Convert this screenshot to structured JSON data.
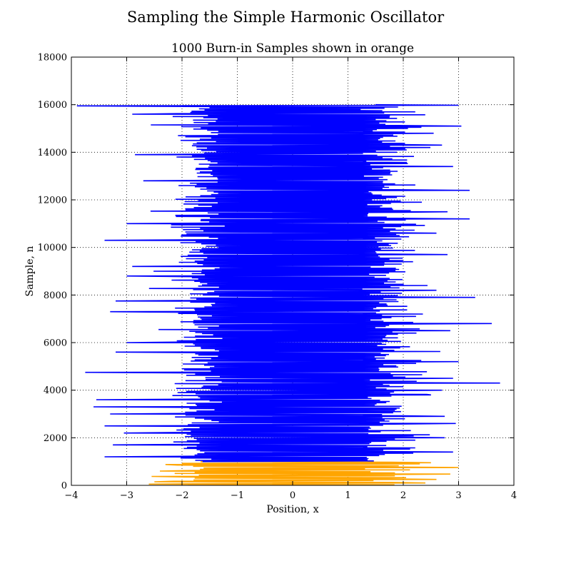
{
  "figure": {
    "suptitle": "Sampling the Simple Harmonic Oscillator"
  },
  "chart_data": {
    "type": "line",
    "title": "1000 Burn-in Samples shown in orange",
    "xlabel": "Position, x",
    "ylabel": "Sample, n",
    "xlim": [
      -4,
      4
    ],
    "ylim": [
      0,
      18000
    ],
    "xticks": [
      -4,
      -3,
      -2,
      -1,
      0,
      1,
      2,
      3,
      4
    ],
    "yticks": [
      0,
      2000,
      4000,
      6000,
      8000,
      10000,
      12000,
      14000,
      16000,
      18000
    ],
    "xtick_labels": [
      "−4",
      "−3",
      "−2",
      "−1",
      "0",
      "1",
      "2",
      "3",
      "4"
    ],
    "ytick_labels": [
      "0",
      "2000",
      "4000",
      "6000",
      "8000",
      "10000",
      "12000",
      "14000",
      "16000",
      "18000"
    ],
    "grid": true,
    "orientation": "horizontal trace (sample index on y, position on x)",
    "series": [
      {
        "color": "#ffa500",
        "sample_range": [
          0,
          1000
        ],
        "approx_x_range": [
          -2.6,
          3.0
        ],
        "peak_excursions": [
          {
            "n": 40,
            "x": -2.6
          },
          {
            "n": 90,
            "x": 2.4
          },
          {
            "n": 160,
            "x": -2.5
          },
          {
            "n": 250,
            "x": 2.6
          },
          {
            "n": 380,
            "x": -2.55
          },
          {
            "n": 470,
            "x": 2.85
          },
          {
            "n": 610,
            "x": -2.4
          },
          {
            "n": 740,
            "x": 3.0
          },
          {
            "n": 880,
            "x": -2.3
          },
          {
            "n": 960,
            "x": 2.5
          }
        ]
      },
      {
        "color": "#0000ff",
        "sample_range": [
          1000,
          16000
        ],
        "approx_x_range": [
          -3.75,
          3.75
        ],
        "peak_excursions": [
          {
            "n": 1200,
            "x": -3.4
          },
          {
            "n": 1400,
            "x": 2.9
          },
          {
            "n": 1700,
            "x": -3.25
          },
          {
            "n": 2000,
            "x": 2.75
          },
          {
            "n": 2200,
            "x": -3.05
          },
          {
            "n": 2500,
            "x": -3.4
          },
          {
            "n": 2600,
            "x": 2.95
          },
          {
            "n": 2900,
            "x": 2.75
          },
          {
            "n": 3000,
            "x": -3.3
          },
          {
            "n": 3300,
            "x": -3.6
          },
          {
            "n": 3600,
            "x": -3.55
          },
          {
            "n": 3800,
            "x": 2.5
          },
          {
            "n": 4000,
            "x": 2.7
          },
          {
            "n": 4300,
            "x": 3.75
          },
          {
            "n": 4500,
            "x": 2.9
          },
          {
            "n": 4750,
            "x": -3.75
          },
          {
            "n": 5200,
            "x": 3.0
          },
          {
            "n": 5600,
            "x": -3.2
          },
          {
            "n": 6000,
            "x": -3.0
          },
          {
            "n": 6500,
            "x": 2.85
          },
          {
            "n": 6800,
            "x": -3.4
          },
          {
            "n": 6800,
            "x": 3.6
          },
          {
            "n": 7300,
            "x": -3.3
          },
          {
            "n": 7750,
            "x": -3.2
          },
          {
            "n": 7900,
            "x": 3.3
          },
          {
            "n": 8200,
            "x": 2.6
          },
          {
            "n": 8800,
            "x": -3.0
          },
          {
            "n": 9200,
            "x": -2.9
          },
          {
            "n": 9700,
            "x": 2.8
          },
          {
            "n": 10300,
            "x": -3.4
          },
          {
            "n": 10600,
            "x": 2.6
          },
          {
            "n": 11000,
            "x": -3.0
          },
          {
            "n": 11200,
            "x": 3.2
          },
          {
            "n": 11500,
            "x": 2.8
          },
          {
            "n": 12400,
            "x": 3.2
          },
          {
            "n": 12800,
            "x": -2.7
          },
          {
            "n": 13400,
            "x": 2.9
          },
          {
            "n": 13900,
            "x": -2.85
          },
          {
            "n": 14300,
            "x": 2.7
          },
          {
            "n": 14800,
            "x": 2.55
          },
          {
            "n": 15100,
            "x": 3.05
          },
          {
            "n": 15600,
            "x": -2.9
          },
          {
            "n": 15950,
            "x": -3.9
          },
          {
            "n": 15970,
            "x": 3.0
          }
        ]
      }
    ]
  }
}
